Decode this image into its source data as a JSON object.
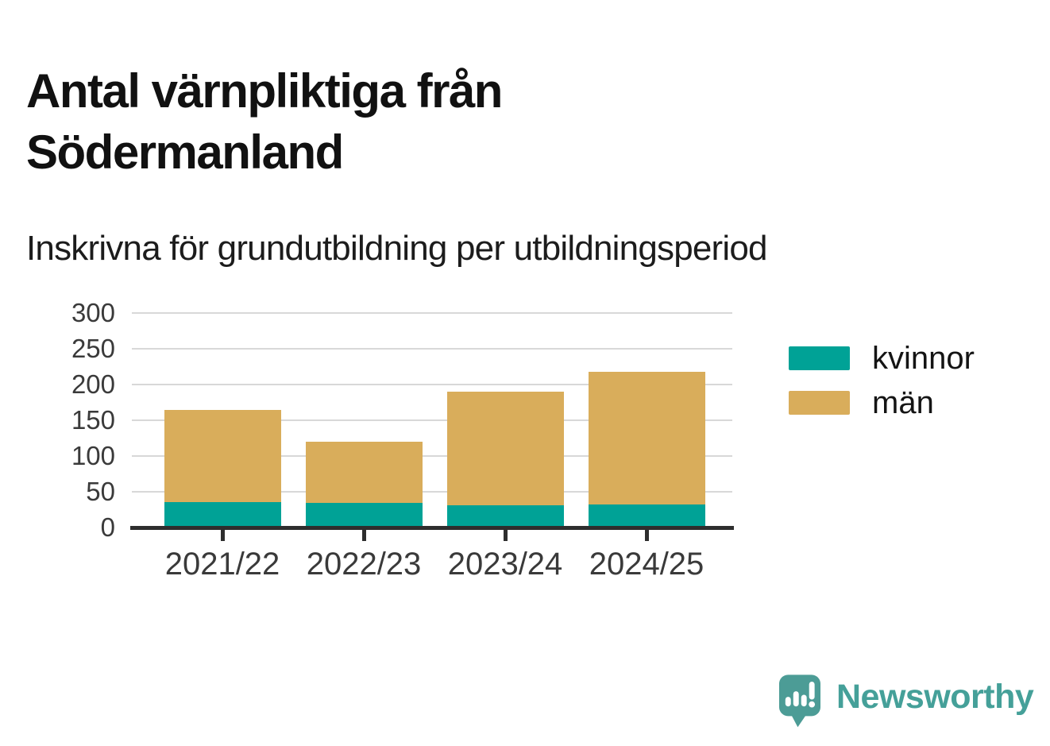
{
  "page": {
    "background": "#FFFFFF"
  },
  "chart_data": {
    "type": "bar",
    "stacked": true,
    "title": "Antal värnpliktiga från Södermanland",
    "subtitle": "Inskrivna för grundutbildning per utbildningsperiod",
    "categories": [
      "2021/22",
      "2022/23",
      "2023/24",
      "2024/25"
    ],
    "series": [
      {
        "name": "kvinnor",
        "color": "#00A296",
        "values": [
          36,
          35,
          31,
          32
        ]
      },
      {
        "name": "män",
        "color": "#D9AD5B",
        "values": [
          128,
          85,
          159,
          186
        ]
      }
    ],
    "stack_totals": [
      164,
      120,
      190,
      218
    ],
    "xlabel": "",
    "ylabel": "",
    "ylim": [
      0,
      300
    ],
    "yticks": [
      0,
      50,
      100,
      150,
      200,
      250,
      300
    ],
    "grid": true,
    "legend_position": "right-of-plot"
  },
  "colors": {
    "axis": "#2E2E2E",
    "gridline": "#D8D8D8",
    "tick_label": "#3A3A3A",
    "title_text": "#111111"
  },
  "footer": {
    "brand_name": "Newsworthy",
    "logo_icon": "newsworthy-speech-bubble-bar-chart-icon",
    "brand_color": "#45A099",
    "logo_bubble_color": "#4C9C96"
  }
}
